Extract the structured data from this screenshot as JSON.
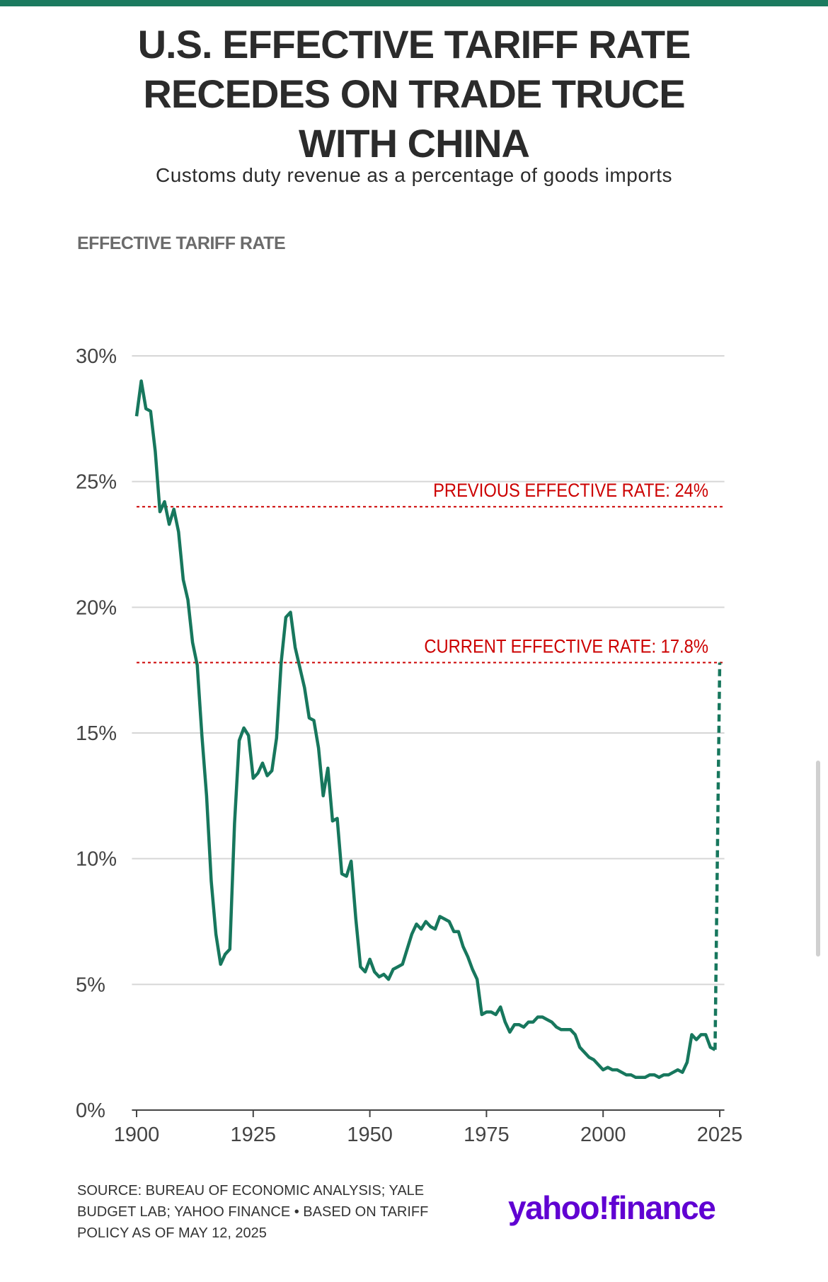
{
  "chart_data": {
    "type": "line",
    "title": [
      "U.S. EFFECTIVE TARIFF RATE",
      "RECEDES ON TRADE TRUCE",
      "WITH CHINA"
    ],
    "subtitle": "Customs duty revenue as a percentage of goods imports",
    "y_axis_label": "EFFECTIVE TARIFF RATE",
    "source": "SOURCE: BUREAU OF ECONOMIC ANALYSIS; YALE BUDGET LAB; YAHOO FINANCE • BASED ON TARIFF POLICY AS OF MAY 12, 2025",
    "logo": "yahoo!finance",
    "color": "#17775d",
    "x": [
      1900,
      1901,
      1902,
      1903,
      1904,
      1905,
      1906,
      1907,
      1908,
      1909,
      1910,
      1911,
      1912,
      1913,
      1914,
      1915,
      1916,
      1917,
      1918,
      1919,
      1920,
      1921,
      1922,
      1923,
      1924,
      1925,
      1926,
      1927,
      1928,
      1929,
      1930,
      1931,
      1932,
      1933,
      1934,
      1935,
      1936,
      1937,
      1938,
      1939,
      1940,
      1941,
      1942,
      1943,
      1944,
      1945,
      1946,
      1947,
      1948,
      1949,
      1950,
      1951,
      1952,
      1953,
      1954,
      1955,
      1956,
      1957,
      1958,
      1959,
      1960,
      1961,
      1962,
      1963,
      1964,
      1965,
      1966,
      1967,
      1968,
      1969,
      1970,
      1971,
      1972,
      1973,
      1974,
      1975,
      1976,
      1977,
      1978,
      1979,
      1980,
      1981,
      1982,
      1983,
      1984,
      1985,
      1986,
      1987,
      1988,
      1989,
      1990,
      1991,
      1992,
      1993,
      1994,
      1995,
      1996,
      1997,
      1998,
      1999,
      2000,
      2001,
      2002,
      2003,
      2004,
      2005,
      2006,
      2007,
      2008,
      2009,
      2010,
      2011,
      2012,
      2013,
      2014,
      2015,
      2016,
      2017,
      2018,
      2019,
      2020,
      2021,
      2022,
      2023,
      2024
    ],
    "values": [
      27.6,
      29.0,
      27.9,
      27.8,
      26.2,
      23.8,
      24.2,
      23.3,
      23.9,
      23.0,
      21.1,
      20.3,
      18.6,
      17.7,
      14.9,
      12.5,
      9.1,
      7.0,
      5.8,
      6.2,
      6.4,
      11.4,
      14.7,
      15.2,
      14.9,
      13.2,
      13.4,
      13.8,
      13.3,
      13.5,
      14.8,
      17.8,
      19.6,
      19.8,
      18.4,
      17.6,
      16.8,
      15.6,
      15.5,
      14.4,
      12.5,
      13.6,
      11.5,
      11.6,
      9.4,
      9.3,
      9.9,
      7.6,
      5.7,
      5.5,
      6.0,
      5.5,
      5.3,
      5.4,
      5.2,
      5.6,
      5.7,
      5.8,
      6.4,
      7.0,
      7.4,
      7.2,
      7.5,
      7.3,
      7.2,
      7.7,
      7.6,
      7.5,
      7.1,
      7.1,
      6.5,
      6.1,
      5.6,
      5.2,
      3.8,
      3.9,
      3.9,
      3.8,
      4.1,
      3.5,
      3.1,
      3.4,
      3.4,
      3.3,
      3.5,
      3.5,
      3.7,
      3.7,
      3.6,
      3.5,
      3.3,
      3.2,
      3.2,
      3.2,
      3.0,
      2.5,
      2.3,
      2.1,
      2.0,
      1.8,
      1.6,
      1.7,
      1.6,
      1.6,
      1.5,
      1.4,
      1.4,
      1.3,
      1.3,
      1.3,
      1.4,
      1.4,
      1.3,
      1.4,
      1.4,
      1.5,
      1.6,
      1.5,
      1.9,
      3.0,
      2.8,
      3.0,
      3.0,
      2.5,
      2.4
    ],
    "projection": {
      "x": [
        2024,
        2025
      ],
      "values": [
        2.4,
        17.8
      ]
    },
    "reference_lines": [
      {
        "value": 24,
        "label": "PREVIOUS EFFECTIVE RATE: 24%",
        "color": "#cc0000"
      },
      {
        "value": 17.8,
        "label": "CURRENT EFFECTIVE RATE: 17.8%",
        "color": "#cc0000"
      }
    ],
    "xlim": [
      1899,
      2026
    ],
    "xticks": [
      1900,
      1925,
      1950,
      1975,
      2000,
      2025
    ],
    "ylim": [
      0,
      30
    ],
    "yticks": [
      {
        "value": 0,
        "label": "0%"
      },
      {
        "value": 5,
        "label": "5%"
      },
      {
        "value": 10,
        "label": "10%"
      },
      {
        "value": 15,
        "label": "15%"
      },
      {
        "value": 20,
        "label": "20%"
      },
      {
        "value": 25,
        "label": "25%"
      },
      {
        "value": 30,
        "label": "30%"
      }
    ],
    "grid": true
  }
}
